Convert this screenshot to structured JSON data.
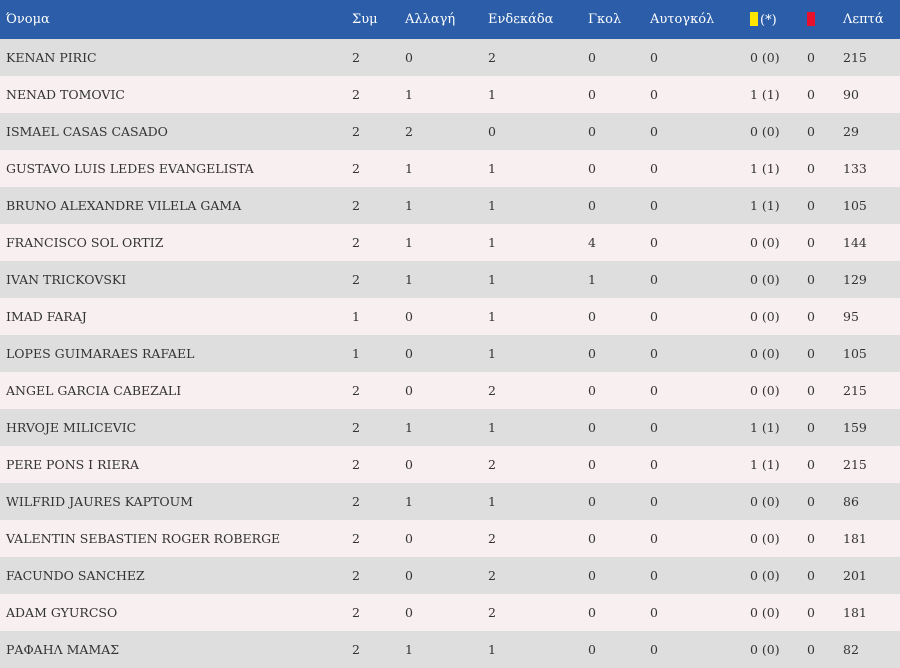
{
  "header": {
    "name": "Όνομα",
    "apps": "Συμ",
    "subs": "Αλλαγή",
    "starting": "Ενδεκάδα",
    "goals": "Γκολ",
    "own_goals": "Αυτογκόλ",
    "yellow_suffix": "(*)",
    "minutes": "Λεπτά"
  },
  "colors": {
    "header_bg": "#2b5da8",
    "yellow_card": "#ffe600",
    "red_card": "#e8102a"
  },
  "rows": [
    {
      "name": "KENAN PIRIC",
      "apps": "2",
      "subs": "0",
      "starting": "2",
      "goals": "0",
      "own_goals": "0",
      "yellow": "0 (0)",
      "red": "0",
      "minutes": "215"
    },
    {
      "name": "NENAD TOMOVIC",
      "apps": "2",
      "subs": "1",
      "starting": "1",
      "goals": "0",
      "own_goals": "0",
      "yellow": "1 (1)",
      "red": "0",
      "minutes": "90"
    },
    {
      "name": "ISMAEL CASAS CASADO",
      "apps": "2",
      "subs": "2",
      "starting": "0",
      "goals": "0",
      "own_goals": "0",
      "yellow": "0 (0)",
      "red": "0",
      "minutes": "29"
    },
    {
      "name": "GUSTAVO LUIS LEDES EVANGELISTA",
      "apps": "2",
      "subs": "1",
      "starting": "1",
      "goals": "0",
      "own_goals": "0",
      "yellow": "1 (1)",
      "red": "0",
      "minutes": "133"
    },
    {
      "name": "BRUNO ALEXANDRE VILELA GAMA",
      "apps": "2",
      "subs": "1",
      "starting": "1",
      "goals": "0",
      "own_goals": "0",
      "yellow": "1 (1)",
      "red": "0",
      "minutes": "105"
    },
    {
      "name": "FRANCISCO SOL ORTIZ",
      "apps": "2",
      "subs": "1",
      "starting": "1",
      "goals": "4",
      "own_goals": "0",
      "yellow": "0 (0)",
      "red": "0",
      "minutes": "144"
    },
    {
      "name": "IVAN TRICKOVSKI",
      "apps": "2",
      "subs": "1",
      "starting": "1",
      "goals": "1",
      "own_goals": "0",
      "yellow": "0 (0)",
      "red": "0",
      "minutes": "129"
    },
    {
      "name": "IMAD FARAJ",
      "apps": "1",
      "subs": "0",
      "starting": "1",
      "goals": "0",
      "own_goals": "0",
      "yellow": "0 (0)",
      "red": "0",
      "minutes": "95"
    },
    {
      "name": "LOPES GUIMARAES RAFAEL",
      "apps": "1",
      "subs": "0",
      "starting": "1",
      "goals": "0",
      "own_goals": "0",
      "yellow": "0 (0)",
      "red": "0",
      "minutes": "105"
    },
    {
      "name": "ANGEL GARCIA CABEZALI",
      "apps": "2",
      "subs": "0",
      "starting": "2",
      "goals": "0",
      "own_goals": "0",
      "yellow": "0 (0)",
      "red": "0",
      "minutes": "215"
    },
    {
      "name": "HRVOJE MILICEVIC",
      "apps": "2",
      "subs": "1",
      "starting": "1",
      "goals": "0",
      "own_goals": "0",
      "yellow": "1 (1)",
      "red": "0",
      "minutes": "159"
    },
    {
      "name": "PERE PONS I RIERA",
      "apps": "2",
      "subs": "0",
      "starting": "2",
      "goals": "0",
      "own_goals": "0",
      "yellow": "1 (1)",
      "red": "0",
      "minutes": "215"
    },
    {
      "name": "WILFRID JAURES KAPTOUM",
      "apps": "2",
      "subs": "1",
      "starting": "1",
      "goals": "0",
      "own_goals": "0",
      "yellow": "0 (0)",
      "red": "0",
      "minutes": "86"
    },
    {
      "name": "VALENTIN SEBASTIEN ROGER ROBERGE",
      "apps": "2",
      "subs": "0",
      "starting": "2",
      "goals": "0",
      "own_goals": "0",
      "yellow": "0 (0)",
      "red": "0",
      "minutes": "181"
    },
    {
      "name": "FACUNDO SANCHEZ",
      "apps": "2",
      "subs": "0",
      "starting": "2",
      "goals": "0",
      "own_goals": "0",
      "yellow": "0 (0)",
      "red": "0",
      "minutes": "201"
    },
    {
      "name": "ADAM GYURCSO",
      "apps": "2",
      "subs": "0",
      "starting": "2",
      "goals": "0",
      "own_goals": "0",
      "yellow": "0 (0)",
      "red": "0",
      "minutes": "181"
    },
    {
      "name": "ΡΑΦΑΗΛ ΜΑΜΑΣ",
      "apps": "2",
      "subs": "1",
      "starting": "1",
      "goals": "0",
      "own_goals": "0",
      "yellow": "0 (0)",
      "red": "0",
      "minutes": "82"
    }
  ]
}
